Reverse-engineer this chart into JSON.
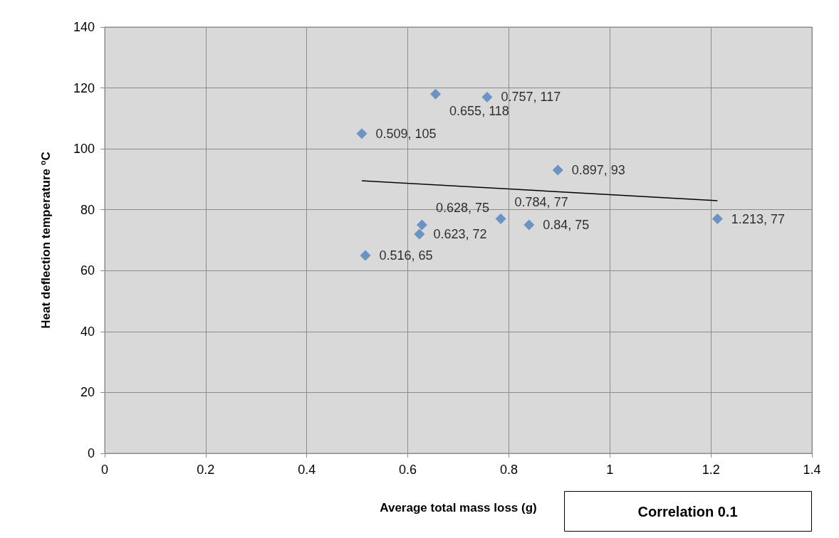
{
  "chart_data": {
    "type": "scatter",
    "xlabel": "Average total mass loss (g)",
    "ylabel": "Heat deflection temperature $^{o}$C",
    "series": [
      {
        "color": "#4f81bd",
        "marker": "diamond",
        "x": [
          0.509,
          0.516,
          0.623,
          0.628,
          0.655,
          0.757,
          0.784,
          0.84,
          0.897,
          1.213
        ],
        "values": [
          105,
          65,
          72,
          75,
          118,
          117,
          77,
          75,
          93,
          77
        ],
        "value_labels": [
          "0.509, 105",
          "0.516, 65",
          "0.623, 72",
          "0.628, 75",
          "0.655, 118",
          "0.757, 117",
          "0.784, 77",
          "0.84, 75",
          "0.897, 93",
          "1.213, 77"
        ]
      },
      {
        "type": "line",
        "marker": "none",
        "color": "#000000",
        "x": [
          0.509,
          1.213
        ],
        "values": [
          89.5,
          83
        ]
      }
    ],
    "grid": true,
    "xlim": [
      0,
      1.4
    ],
    "xticks": [
      0,
      0.2,
      0.4,
      0.6,
      0.8,
      1,
      1.2,
      1.4
    ],
    "ylim": [
      0,
      140
    ],
    "yticks": [
      0,
      20,
      40,
      60,
      80,
      100,
      120,
      140
    ],
    "annotations": [
      "Correlation 0.1"
    ]
  }
}
